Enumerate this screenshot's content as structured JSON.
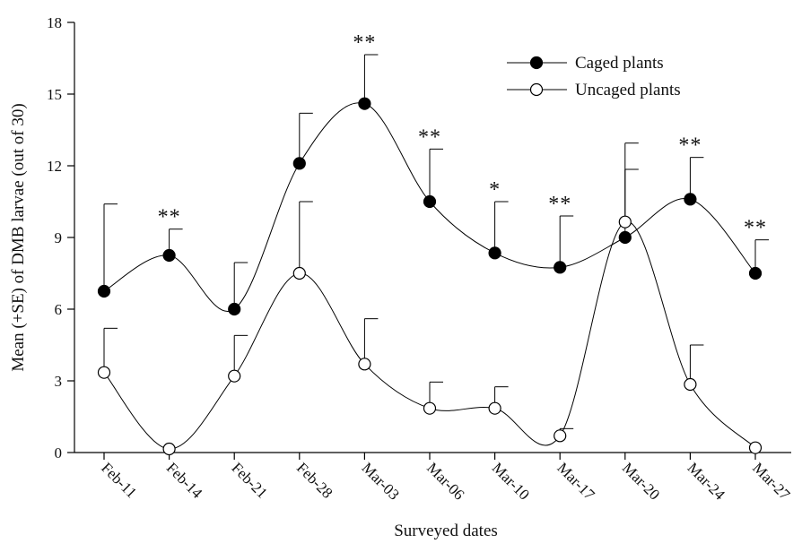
{
  "chart_data": {
    "type": "line",
    "xlabel": "Surveyed dates",
    "ylabel": "Mean (+SE) of DMB larvae (out of 30)",
    "categories": [
      "Feb-11",
      "Feb-14",
      "Feb-21",
      "Feb-28",
      "Mar-03",
      "Mar-06",
      "Mar-10",
      "Mar-17",
      "Mar-20",
      "Mar-24",
      "Mar-27"
    ],
    "ylim": [
      0,
      18
    ],
    "yticks": [
      0,
      3,
      6,
      9,
      12,
      15,
      18
    ],
    "grid": false,
    "legend_position": "top-right",
    "series": [
      {
        "name": "Caged plants",
        "marker": "filled-circle",
        "color": "#000000",
        "values": [
          6.75,
          8.25,
          6.0,
          12.1,
          14.6,
          10.5,
          8.35,
          7.75,
          9.0,
          10.6,
          7.5
        ],
        "se_upper": [
          10.4,
          9.35,
          7.95,
          14.2,
          16.65,
          12.7,
          10.5,
          9.9,
          11.85,
          12.35,
          8.9
        ]
      },
      {
        "name": "Uncaged plants",
        "marker": "open-circle",
        "color": "#000000",
        "values": [
          3.35,
          0.15,
          3.2,
          7.5,
          3.7,
          1.85,
          1.85,
          0.7,
          9.65,
          2.85,
          0.2
        ],
        "se_upper": [
          5.2,
          null,
          4.9,
          10.5,
          5.6,
          2.95,
          2.75,
          1.0,
          12.95,
          4.5,
          null
        ]
      }
    ],
    "annotations": [
      "",
      "**",
      "",
      "",
      "**",
      "**",
      "*",
      "**",
      "",
      "**",
      "**"
    ]
  }
}
